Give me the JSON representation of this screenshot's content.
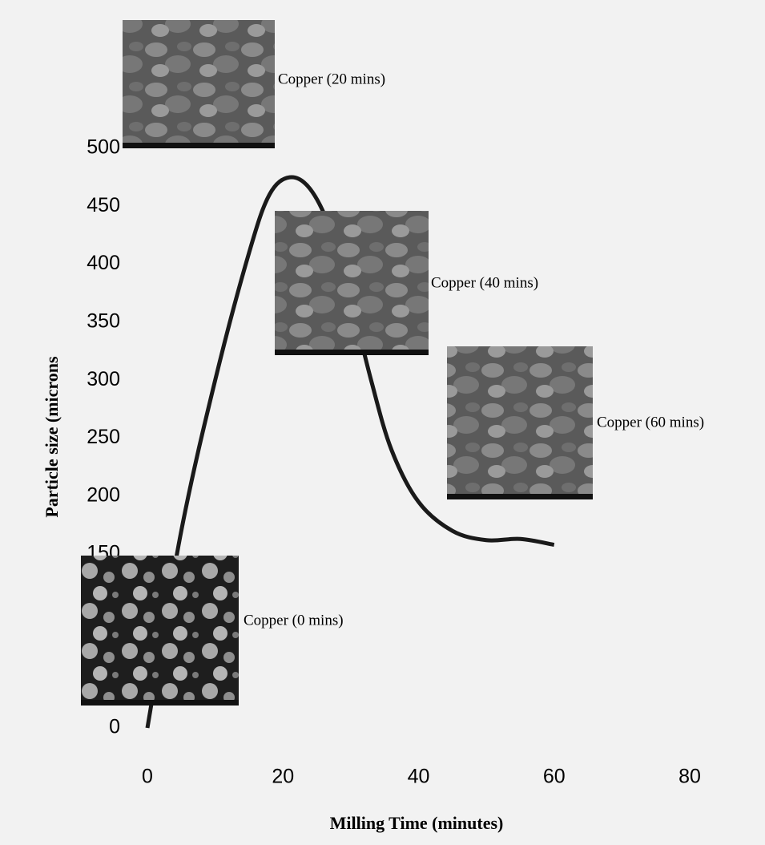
{
  "chart_data": {
    "type": "line",
    "x_label": "Milling Time (minutes)",
    "y_label": "Particle size (microns",
    "x": [
      0,
      5,
      10,
      15,
      18,
      21,
      24,
      27,
      30,
      33,
      36,
      40,
      45,
      50,
      55,
      60
    ],
    "values": [
      0,
      170,
      300,
      410,
      460,
      475,
      465,
      430,
      370,
      300,
      240,
      195,
      170,
      162,
      163,
      158
    ],
    "color": "#1a1a1a",
    "xlim": [
      0,
      80
    ],
    "xticks": [
      0,
      20,
      40,
      60,
      80
    ],
    "ylim": [
      0,
      500
    ],
    "yticks": [
      0,
      150,
      200,
      250,
      300,
      350,
      400,
      450,
      500
    ],
    "annotations": [
      "Copper (20 mins)",
      "Copper (40 mins)",
      "Copper (60 mins)",
      "Copper (0 mins)"
    ]
  }
}
